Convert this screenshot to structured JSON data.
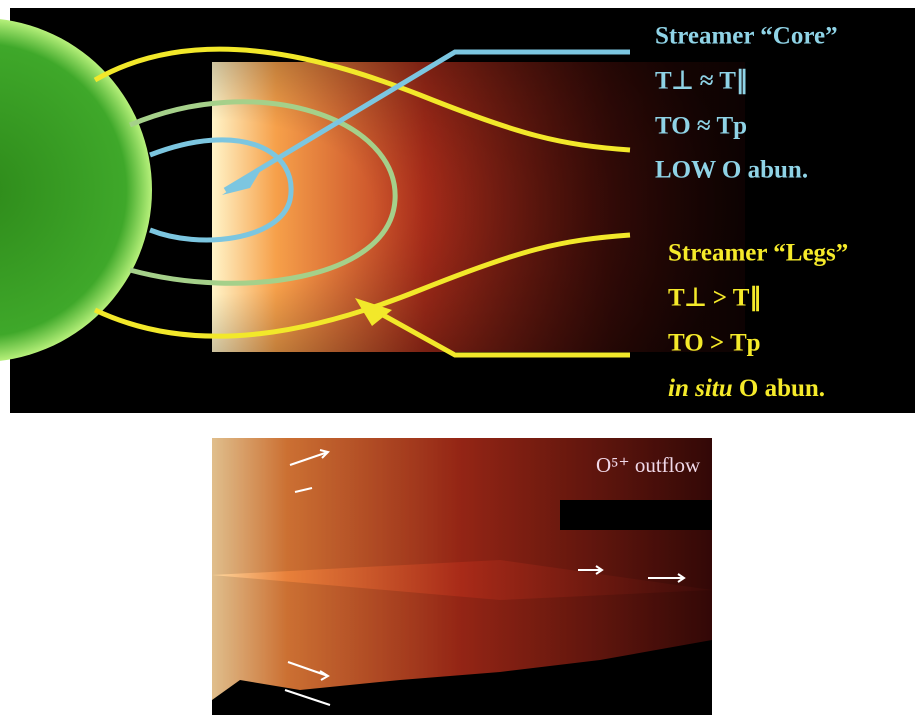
{
  "core": {
    "title": "Streamer “Core”",
    "lines": [
      "T⊥ ≈ T∥",
      "TO ≈ Tp",
      "LOW  O abun."
    ]
  },
  "legs": {
    "title": "Streamer “Legs”",
    "lines": [
      "T⊥ > T∥",
      "TO > Tp"
    ],
    "last_italic": "in situ",
    "last_rest": " O abun."
  },
  "outflow_label": "O⁵⁺ outflow"
}
